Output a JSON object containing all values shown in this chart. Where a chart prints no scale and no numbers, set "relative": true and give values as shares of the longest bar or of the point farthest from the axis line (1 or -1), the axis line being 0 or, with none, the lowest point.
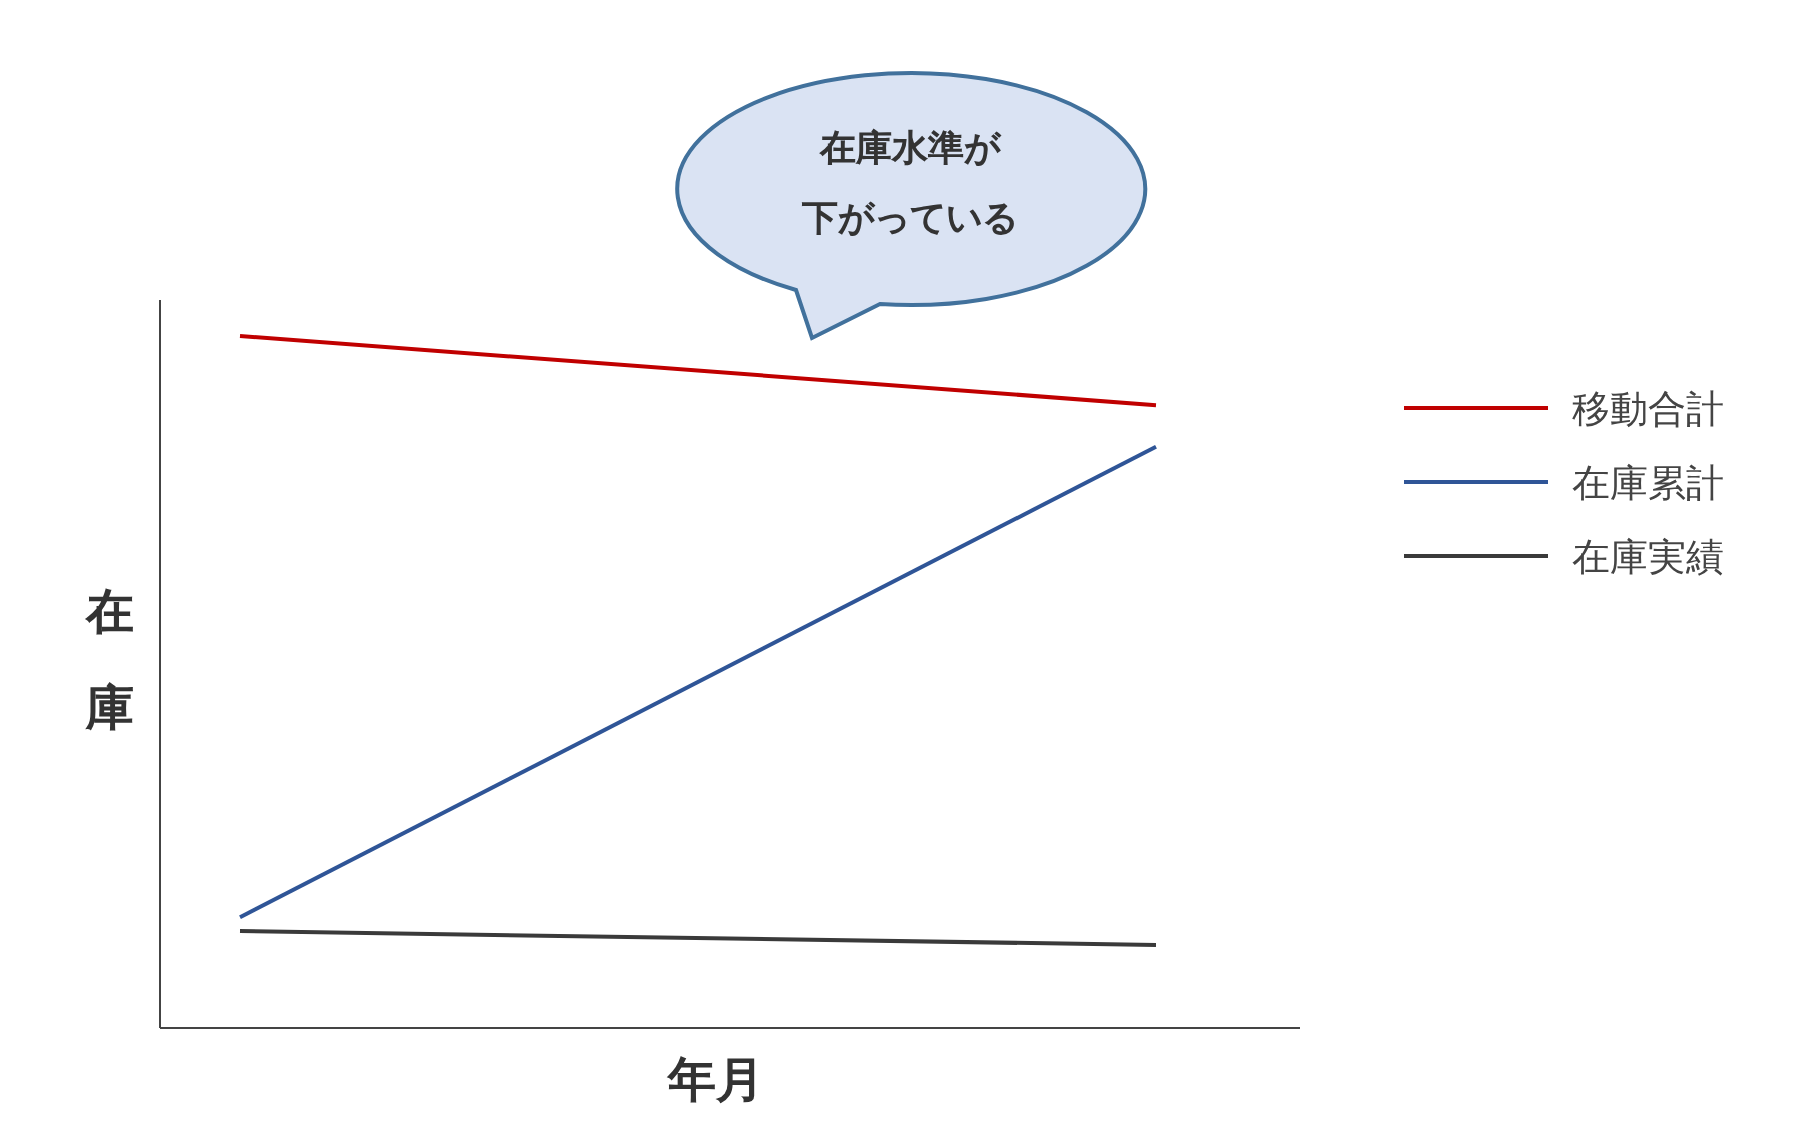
{
  "chart_data": {
    "type": "line",
    "relative": true,
    "xlabel": "年月",
    "ylabel": "在庫",
    "categories": [
      null,
      null
    ],
    "series": [
      {
        "name": "移動合計",
        "color": "#c00000",
        "values": [
          1,
          0.9
        ]
      },
      {
        "name": "在庫累計",
        "color": "#2f5597",
        "values": [
          0.16,
          0.84
        ]
      },
      {
        "name": "在庫実績",
        "color": "#3a3a3a",
        "values": [
          0.14,
          0.12
        ]
      }
    ],
    "legend": "right",
    "grid": false,
    "marker": "none",
    "line_style": "solid",
    "annotations": [
      "在庫水準が",
      "下がっている"
    ]
  }
}
